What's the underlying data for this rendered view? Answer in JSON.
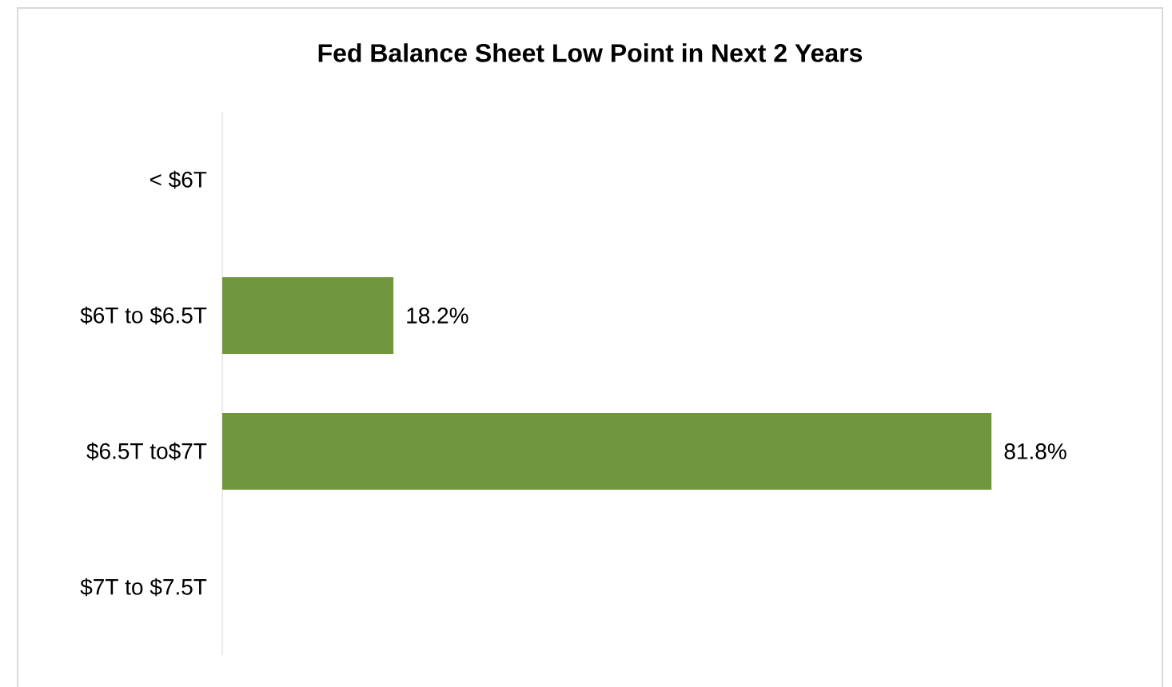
{
  "chart_data": {
    "type": "bar",
    "orientation": "horizontal",
    "title": "Fed Balance Sheet Low Point in Next 2 Years",
    "categories": [
      "< $6T",
      "$6T to $6.5T",
      "$6.5T to$7T",
      "$7T to $7.5T"
    ],
    "values": [
      null,
      18.2,
      81.8,
      null
    ],
    "value_labels": [
      null,
      "18.2%",
      "81.8%",
      null
    ],
    "color": "#70963e"
  }
}
